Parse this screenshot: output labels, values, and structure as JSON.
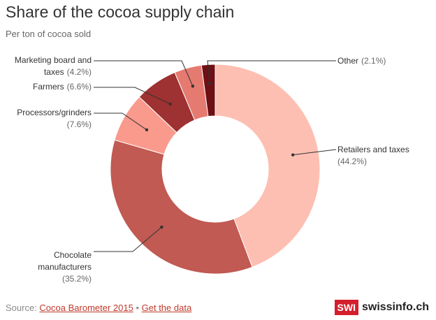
{
  "title": "Share of the cocoa supply chain",
  "subtitle": "Per ton of cocoa sold",
  "footer": {
    "source_prefix": "Source: ",
    "source_link": "Cocoa Barometer 2015",
    "separator": " • ",
    "data_link": "Get the data"
  },
  "brand": {
    "box": "SWI",
    "name": "swissinfo.ch",
    "color": "#d41e2c"
  },
  "chart_data": {
    "type": "pie",
    "donut": true,
    "title": "Share of the cocoa supply chain",
    "subtitle": "Per ton of cocoa sold",
    "slices": [
      {
        "name": "Retailers and taxes",
        "value": 44.2,
        "pct_label": "(44.2%)",
        "color": "#fdbfb2"
      },
      {
        "name": "Chocolate manufacturers",
        "value": 35.2,
        "pct_label": "(35.2%)",
        "color": "#c05a52"
      },
      {
        "name": "Processors/grinders",
        "value": 7.6,
        "pct_label": "(7.6%)",
        "color": "#f99a8c"
      },
      {
        "name": "Farmers",
        "value": 6.6,
        "pct_label": "(6.6%)",
        "color": "#9e3131"
      },
      {
        "name": "Marketing board and taxes",
        "value": 4.2,
        "pct_label": "(4.2%)",
        "color": "#e57a70"
      },
      {
        "name": "Other",
        "value": 2.1,
        "pct_label": "(2.1%)",
        "color": "#6e1014"
      }
    ]
  }
}
